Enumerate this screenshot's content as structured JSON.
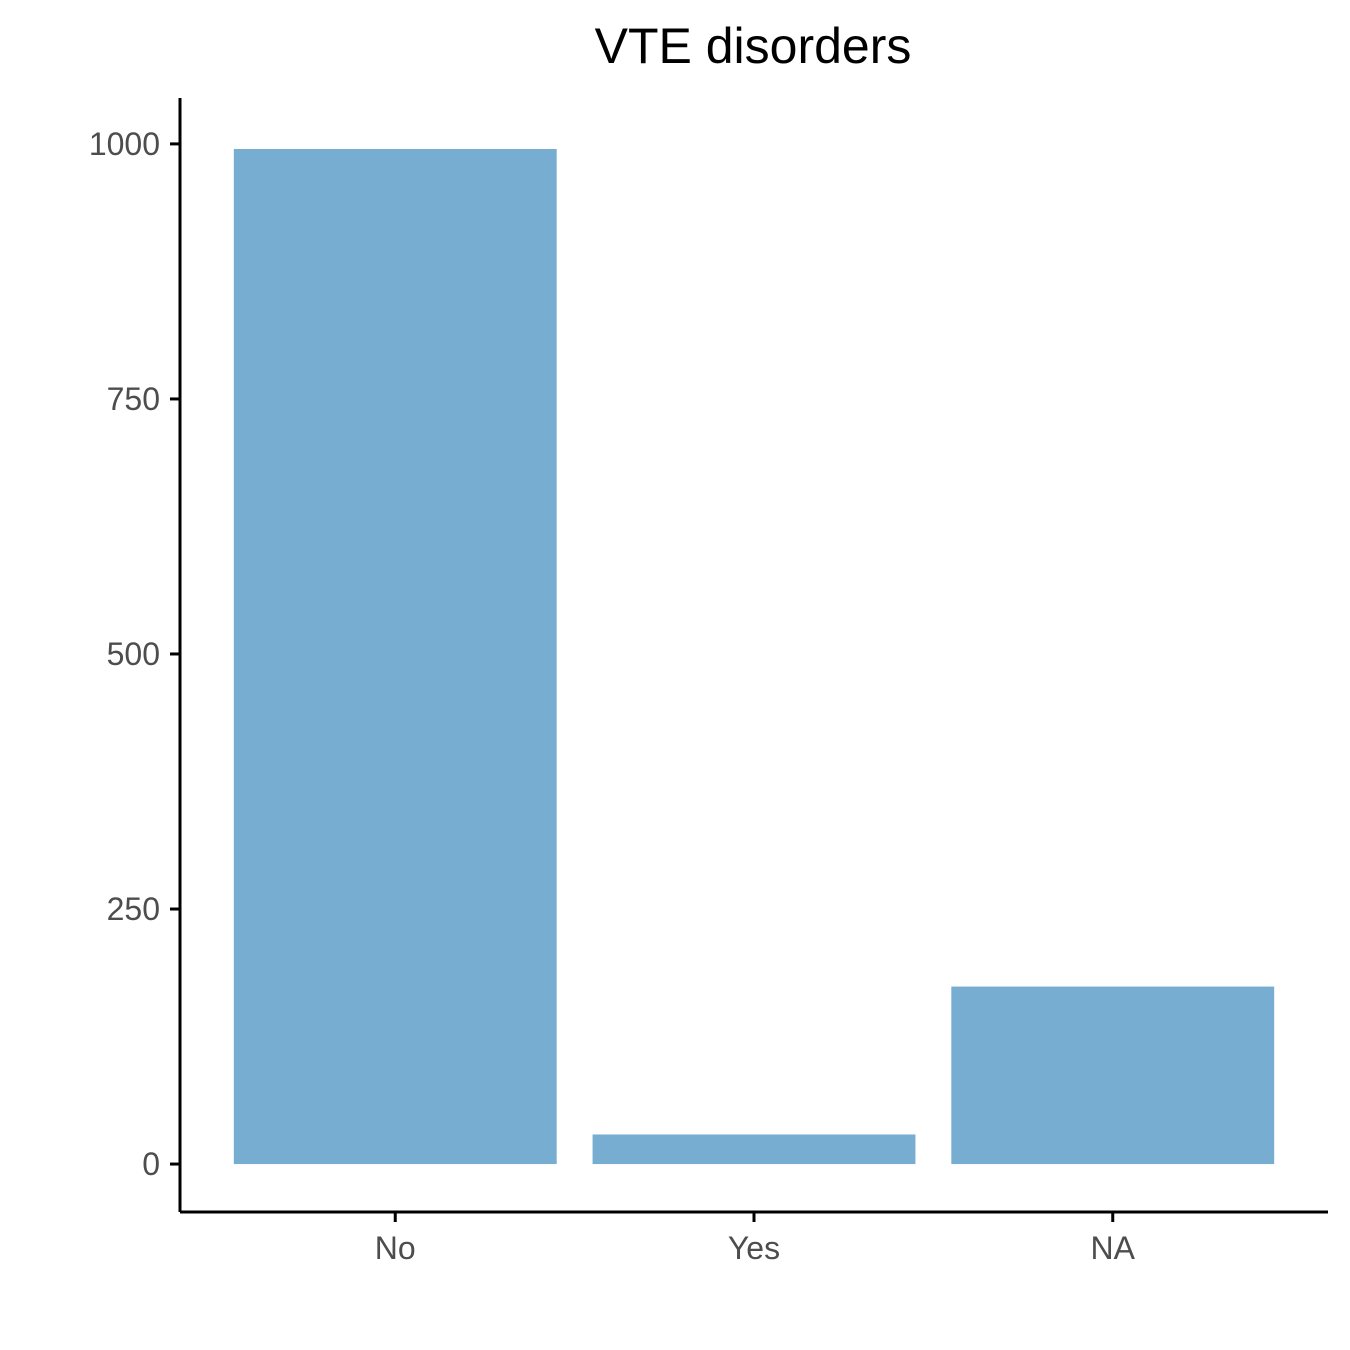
{
  "chart_data": {
    "type": "bar",
    "title": "VTE disorders",
    "xlabel": "",
    "ylabel": "",
    "categories": [
      "No",
      "Yes",
      "NA"
    ],
    "values": [
      995,
      29,
      174
    ],
    "ylim": [
      -47,
      1045
    ],
    "yticks": [
      0,
      250,
      500,
      750,
      1000
    ],
    "ytick_labels": [
      "0",
      "250",
      "500",
      "750",
      "1000"
    ],
    "grid": false,
    "legend": "none",
    "bar_color": "#78add2"
  }
}
